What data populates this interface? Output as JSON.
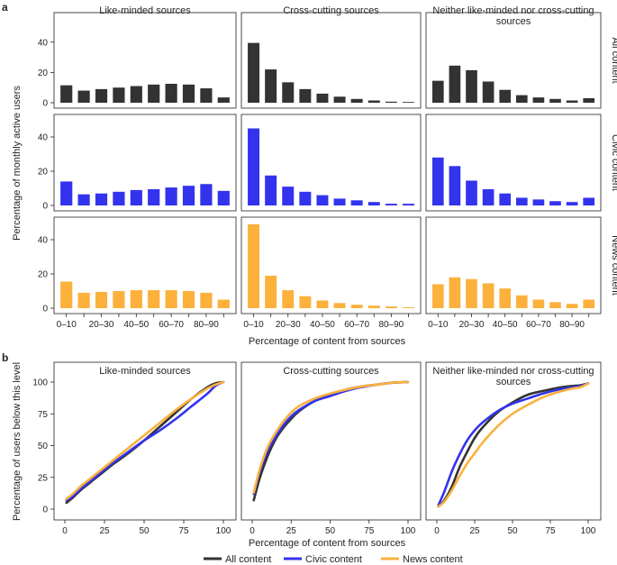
{
  "figure": {
    "panel_a_letter": "a",
    "panel_b_letter": "b"
  },
  "chart_data": [
    {
      "type": "bar",
      "panel": "a",
      "columns": [
        "Like-minded sources",
        "Cross-cutting sources",
        "Neither like-minded nor cross-cutting sources"
      ],
      "rows": [
        "All content",
        "Civic content",
        "News content"
      ],
      "xlabel": "Percentage of content from sources",
      "ylabel": "Percentage of monthly active users",
      "ylim": [
        0,
        50
      ],
      "yticks": [
        0,
        20,
        40
      ],
      "bins": [
        "0–10",
        "10–20",
        "20–30",
        "30–40",
        "40–50",
        "50–60",
        "60–70",
        "70–80",
        "80–90",
        "90–100"
      ],
      "tick_labels": [
        "0–10",
        "",
        "20–30",
        "",
        "40–50",
        "",
        "60–70",
        "",
        "80–90",
        ""
      ],
      "row_colors": [
        "#333333",
        "#3333ee",
        "#fbb13c"
      ],
      "values": [
        [
          [
            11.5,
            8.0,
            9.0,
            10.0,
            11.0,
            12.0,
            12.5,
            12.0,
            9.5,
            3.5
          ],
          [
            39.5,
            22.0,
            13.5,
            9.0,
            6.0,
            4.0,
            2.5,
            1.5,
            0.7,
            0.5
          ],
          [
            14.5,
            24.5,
            21.5,
            14.0,
            8.5,
            5.0,
            3.5,
            2.5,
            1.5,
            3.0
          ]
        ],
        [
          [
            14.0,
            6.5,
            7.0,
            8.0,
            9.0,
            9.5,
            10.5,
            11.5,
            12.5,
            8.5
          ],
          [
            45.0,
            17.5,
            11.0,
            8.0,
            6.0,
            4.0,
            3.0,
            2.0,
            1.0,
            1.0
          ],
          [
            28.0,
            23.0,
            14.5,
            9.5,
            7.0,
            4.5,
            3.5,
            2.5,
            2.0,
            4.5
          ]
        ],
        [
          [
            15.5,
            9.0,
            9.5,
            10.0,
            10.5,
            10.5,
            10.5,
            10.0,
            9.0,
            5.0
          ],
          [
            49.0,
            19.0,
            10.5,
            7.0,
            4.5,
            3.0,
            2.0,
            1.5,
            1.0,
            0.5
          ],
          [
            14.0,
            18.0,
            17.0,
            14.5,
            11.5,
            7.5,
            5.0,
            3.5,
            2.5,
            5.0
          ]
        ]
      ]
    },
    {
      "type": "line",
      "panel": "b",
      "columns": [
        "Like-minded sources",
        "Cross-cutting sources",
        "Neither like-minded nor cross-cutting sources"
      ],
      "xlabel": "Percentage of content from sources",
      "ylabel": "Percentage of users below this level",
      "xlim": [
        0,
        100
      ],
      "ylim": [
        0,
        100
      ],
      "xticks": [
        0,
        25,
        50,
        75,
        100
      ],
      "yticks": [
        0,
        25,
        50,
        75,
        100
      ],
      "legend": [
        {
          "label": "All content",
          "color": "#333333"
        },
        {
          "label": "Civic content",
          "color": "#3333ee"
        },
        {
          "label": "News content",
          "color": "#fbb13c"
        }
      ],
      "x": [
        1,
        5,
        10,
        15,
        20,
        25,
        30,
        40,
        50,
        60,
        70,
        80,
        90,
        95,
        100
      ],
      "series": [
        [
          {
            "values": [
              5,
              9,
              15,
              20,
              25,
              30,
              35,
              44,
              54,
              65,
              76,
              87,
              96,
              99,
              100
            ]
          },
          {
            "values": [
              7,
              10,
              16,
              21,
              26,
              31,
              36,
              45,
              54,
              62,
              71,
              81,
              91,
              97,
              100
            ]
          },
          {
            "values": [
              8,
              12,
              18,
              23,
              28,
              33,
              38,
              48,
              58,
              68,
              78,
              87,
              95,
              98,
              100
            ]
          }
        ],
        [
          {
            "values": [
              7,
              25,
              42,
              55,
              64,
              71,
              77,
              85,
              90,
              94,
              96.5,
              98,
              99.5,
              99.8,
              100
            ]
          },
          {
            "values": [
              12,
              30,
              46,
              57,
              66,
              73,
              78,
              85,
              89,
              93,
              96,
              98,
              99.5,
              99.8,
              100
            ]
          },
          {
            "values": [
              13,
              32,
              49,
              60,
              69,
              76,
              81,
              87,
              91,
              94,
              96.5,
              98,
              99.5,
              99.8,
              100
            ]
          }
        ],
        [
          {
            "values": [
              2,
              7,
              18,
              33,
              45,
              56,
              64,
              76,
              84,
              90,
              93,
              95.5,
              97,
              97.5,
              99
            ]
          },
          {
            "values": [
              3,
              14,
              30,
              43,
              54,
              62,
              68,
              77,
              83,
              87,
              91,
              94,
              96,
              97,
              99
            ]
          },
          {
            "values": [
              2,
              6,
              15,
              26,
              36,
              44,
              52,
              65,
              75,
              82,
              88,
              92,
              95,
              96,
              99
            ]
          }
        ]
      ]
    }
  ]
}
